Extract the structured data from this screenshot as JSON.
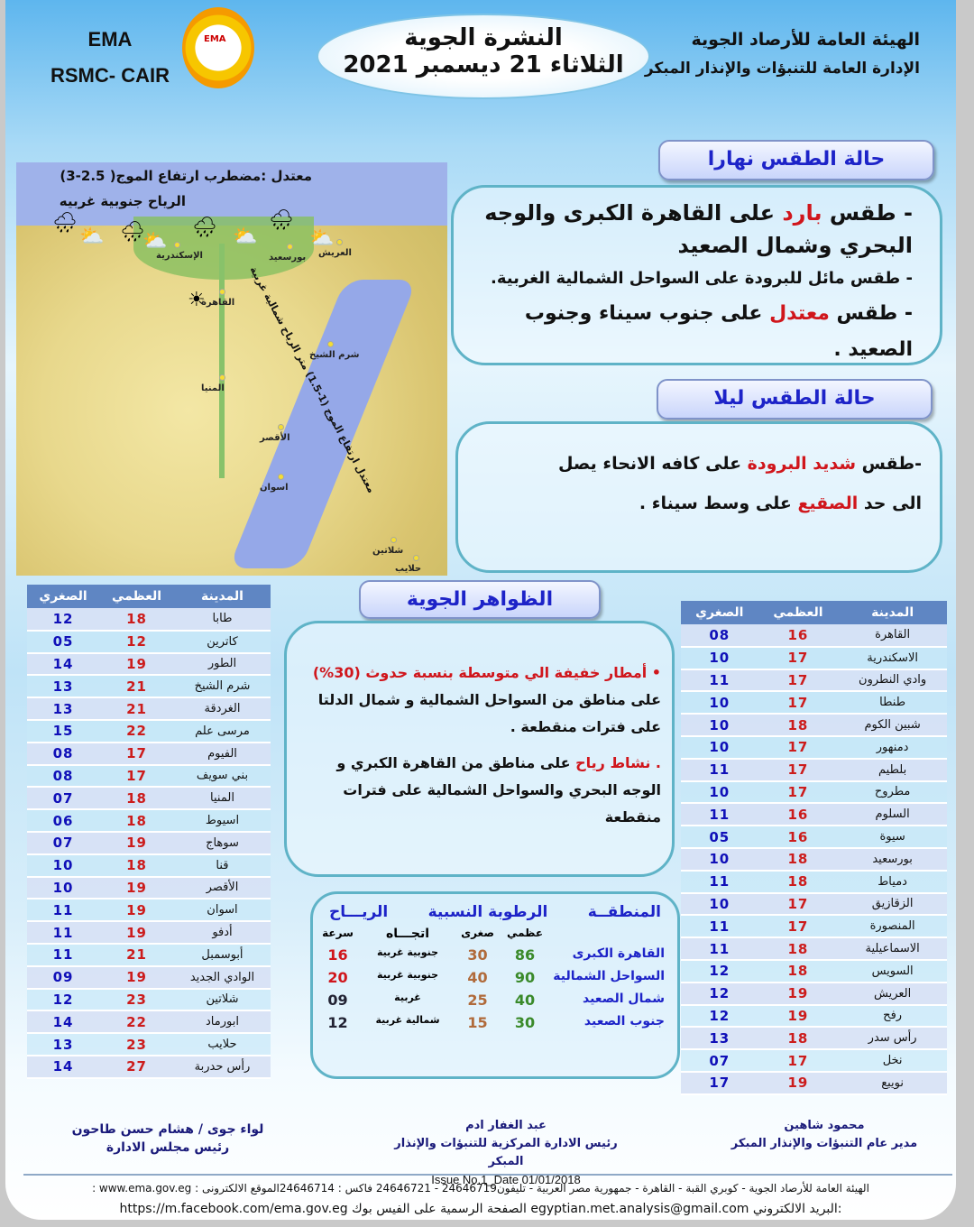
{
  "header": {
    "org_line1": "الهيئة العامة للأرصاد الجوية",
    "org_line2": "الإدارة العامة للتنبؤات والإنذار المبكر",
    "title": "النشرة الجوية",
    "date": "الثلاثاء 21 ديسمبر 2021",
    "ema": "EMA",
    "rsmc": "RSMC- CAIR",
    "logo_text": "EMA"
  },
  "day": {
    "title": "حالة الطقس نهارا",
    "lines": [
      {
        "pre": "- طقس ",
        "hl": "بارد",
        "post": " على القاهرة الكبرى والوجه البحري وشمال الصعيد"
      },
      {
        "pre": "- طقس مائل للبرودة على السواحل الشمالية الغربية."
      },
      {
        "pre": "- طقس ",
        "hl": "معتدل",
        "post": " على جنوب سيناء وجنوب الصعيد ."
      }
    ]
  },
  "night": {
    "title": "حالة الطقس ليلا",
    "pre": "-طقس ",
    "hl": "شديد البرودة",
    "mid": " على كافه الانحاء يصل الى حد ",
    "hl2": "الصقيع",
    "post": " على وسط سيناء ."
  },
  "map": {
    "note1": "معتدل :مضطرب    ارتفاع الموج( 2.5-3)",
    "note2": "الرياح  جنوبية غربيه",
    "rednote": "معتدل  ارتفاع الموج (1-1.5) متر  الرياح  شمالية غربية",
    "cities": [
      "الإسكندرية",
      "بورسعيد",
      "العريش",
      "القاهرة",
      "المنيا",
      "الأقصر",
      "اسوان",
      "شرم الشيخ",
      "شلاتين",
      "حلايب"
    ],
    "icons": [
      "rain-cloud",
      "rain-cloud",
      "rain-cloud",
      "rain-cloud",
      "partly-cloudy",
      "partly-cloudy",
      "partly-cloudy",
      "partly-cloudy",
      "sunny"
    ]
  },
  "phenomena": {
    "title": "الظواهر الجوية",
    "l1_hl": "• أمطار خفيفة الي متوسطة بنسبة حدوث (30%)",
    "l1_post": " على مناطق من السواحل الشمالية و شمال الدلتا على فترات منقطعة .",
    "l2_hl": ". نشاط رياح",
    "l2_post": " على مناطق من القاهرة الكبري و الوجه البحري والسواحل الشمالية على فترات منقطعة"
  },
  "table_headers": {
    "city": "المدينة",
    "max": "العظمي",
    "min": "الصغري"
  },
  "left_table": [
    [
      "طابا",
      "18",
      "12"
    ],
    [
      "كاترين",
      "12",
      "05"
    ],
    [
      "الطور",
      "19",
      "14"
    ],
    [
      "شرم الشيخ",
      "21",
      "13"
    ],
    [
      "الغردقة",
      "21",
      "13"
    ],
    [
      "مرسى علم",
      "22",
      "15"
    ],
    [
      "الفيوم",
      "17",
      "08"
    ],
    [
      "بني سويف",
      "17",
      "08"
    ],
    [
      "المنيا",
      "18",
      "07"
    ],
    [
      "اسيوط",
      "18",
      "06"
    ],
    [
      "سوهاج",
      "19",
      "07"
    ],
    [
      "قنا",
      "18",
      "10"
    ],
    [
      "الأقصر",
      "19",
      "10"
    ],
    [
      "اسوان",
      "19",
      "11"
    ],
    [
      "أدفو",
      "19",
      "11"
    ],
    [
      "أبوسمبل",
      "21",
      "11"
    ],
    [
      "الوادي الجديد",
      "19",
      "09"
    ],
    [
      "شلاتين",
      "23",
      "12"
    ],
    [
      "ابورماد",
      "22",
      "14"
    ],
    [
      "حلايب",
      "23",
      "13"
    ],
    [
      "رأس حدربة",
      "27",
      "14"
    ]
  ],
  "right_table": [
    [
      "القاهرة",
      "16",
      "08"
    ],
    [
      "الاسكندرية",
      "17",
      "10"
    ],
    [
      "وادي النطرون",
      "17",
      "11"
    ],
    [
      "طنطا",
      "17",
      "10"
    ],
    [
      "شبين الكوم",
      "18",
      "10"
    ],
    [
      "دمنهور",
      "17",
      "10"
    ],
    [
      "بلطيم",
      "17",
      "11"
    ],
    [
      "مطروح",
      "17",
      "10"
    ],
    [
      "السلوم",
      "16",
      "11"
    ],
    [
      "سيوة",
      "16",
      "05"
    ],
    [
      "بورسعيد",
      "18",
      "10"
    ],
    [
      "دمياط",
      "18",
      "11"
    ],
    [
      "الزقازيق",
      "17",
      "10"
    ],
    [
      "المنصورة",
      "17",
      "11"
    ],
    [
      "الاسماعيلية",
      "18",
      "11"
    ],
    [
      "السويس",
      "18",
      "12"
    ],
    [
      "العريش",
      "19",
      "12"
    ],
    [
      "رفح",
      "19",
      "12"
    ],
    [
      "رأس سدر",
      "18",
      "13"
    ],
    [
      "نخل",
      "17",
      "07"
    ],
    [
      "نويبع",
      "19",
      "17"
    ]
  ],
  "wind": {
    "h_region": "المنطقــة",
    "h_humidity": "الرطوبة النسبية",
    "h_wind": "الريـــاح",
    "h_max": "عظمي",
    "h_min": "صغرى",
    "h_dir": "اتجـــاه",
    "h_speed": "سرعة",
    "rows": [
      [
        "القاهرة الكبرى",
        "86",
        "30",
        "جنوبية غربية",
        "16"
      ],
      [
        "السواحل الشمالية",
        "90",
        "40",
        "جنوبية غربية",
        "20"
      ],
      [
        "شمال الصعيد",
        "40",
        "25",
        "غربية",
        "09"
      ],
      [
        "جنوب الصعيد",
        "30",
        "15",
        "شمالية غربية",
        "12"
      ]
    ]
  },
  "signatures": [
    {
      "name": "محمود شاهين",
      "role": "مدير عام التنبؤات والإنذار المبكر"
    },
    {
      "name": "عبد الغفار ادم",
      "role": "رئيس الادارة المركزية للتنبؤات والإنذار المبكر",
      "issue": "Issue No.1_Date 01/01/2018"
    },
    {
      "name": "لواء جوى / هشام حسن طاحون",
      "role": "رئيس مجلس الادارة"
    }
  ],
  "footer": {
    "line1": "الهيئة العامة للأرصاد الجوية - كوبري القبة - القاهرة - جمهورية مصر العربية - تليفون24646719  -  24646721 فاكس : 24646714الموقع الالكترونى :   www.ema.gov.eg :",
    "line2": ":البريد الالكتروني egyptian.met.analysis@gmail.com   الصفحة الرسمية على الفيس بوك  https://m.facebook.com/ema.gov.eg"
  }
}
